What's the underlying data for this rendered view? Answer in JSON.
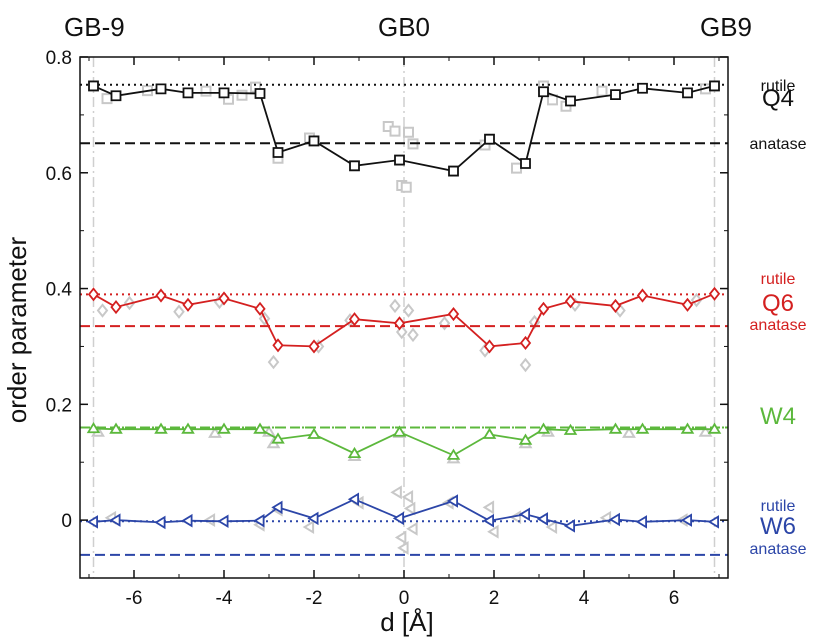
{
  "chart_data": {
    "type": "line",
    "xlabel": "d [Å]",
    "ylabel": "order parameter",
    "xlim": [
      -7.2,
      7.2
    ],
    "ylim": [
      -0.1,
      0.8
    ],
    "x_ticks": [
      -6,
      -4,
      -2,
      0,
      2,
      4,
      6
    ],
    "y_ticks": [
      0,
      0.2,
      0.4,
      0.6,
      0.8
    ],
    "y_tick_labels": [
      "0",
      "0.2",
      "0.4",
      "0.6",
      "0.8"
    ],
    "x_tick_labels": [
      "-6",
      "-4",
      "-2",
      "0",
      "2",
      "4",
      "6"
    ],
    "top_labels": [
      {
        "text": "GB-9",
        "x": -6.9
      },
      {
        "text": "GB0",
        "x": 0
      },
      {
        "text": "GB9",
        "x": 6.9
      }
    ],
    "vertical_lines_x": [
      -6.9,
      0,
      6.9
    ],
    "series": [
      {
        "name": "Q4",
        "color": "#111111",
        "marker": "square",
        "x": [
          -6.9,
          -6.4,
          -5.4,
          -4.8,
          -4.0,
          -3.2,
          -2.8,
          -2.0,
          -1.1,
          -0.1,
          1.1,
          1.9,
          2.7,
          3.1,
          3.7,
          4.7,
          5.3,
          6.3,
          6.9
        ],
        "y": [
          0.75,
          0.733,
          0.745,
          0.738,
          0.738,
          0.737,
          0.635,
          0.655,
          0.612,
          0.622,
          0.603,
          0.658,
          0.616,
          0.74,
          0.724,
          0.735,
          0.746,
          0.738,
          0.75
        ],
        "rutile": 0.752,
        "anatase": 0.651,
        "rutile_label": "rutile",
        "anatase_label": "anatase"
      },
      {
        "name": "Q6",
        "color": "#d42020",
        "marker": "diamond",
        "x": [
          -6.9,
          -6.4,
          -5.4,
          -4.8,
          -4.0,
          -3.2,
          -2.8,
          -2.0,
          -1.1,
          -0.1,
          1.1,
          1.9,
          2.7,
          3.1,
          3.7,
          4.7,
          5.3,
          6.3,
          6.9
        ],
        "y": [
          0.39,
          0.368,
          0.388,
          0.372,
          0.383,
          0.365,
          0.302,
          0.3,
          0.347,
          0.34,
          0.356,
          0.3,
          0.306,
          0.365,
          0.378,
          0.37,
          0.388,
          0.372,
          0.391
        ],
        "rutile": 0.39,
        "anatase": 0.335,
        "rutile_label": "rutile",
        "anatase_label": "anatase"
      },
      {
        "name": "W4",
        "color": "#5cb83c",
        "marker": "triangle-up",
        "x": [
          -6.9,
          -6.4,
          -5.4,
          -4.8,
          -4.0,
          -3.2,
          -2.8,
          -2.0,
          -1.1,
          -0.1,
          1.1,
          1.9,
          2.7,
          3.1,
          3.7,
          4.7,
          5.3,
          6.3,
          6.9
        ],
        "y": [
          0.158,
          0.157,
          0.157,
          0.157,
          0.157,
          0.157,
          0.14,
          0.148,
          0.115,
          0.152,
          0.112,
          0.148,
          0.138,
          0.157,
          0.155,
          0.157,
          0.157,
          0.157,
          0.157
        ],
        "rutile": 0.16,
        "anatase": 0.16
      },
      {
        "name": "W6",
        "color": "#2c46a8",
        "marker": "triangle-left",
        "x": [
          -6.9,
          -6.4,
          -5.4,
          -4.8,
          -4.0,
          -3.2,
          -2.8,
          -2.0,
          -1.1,
          -0.1,
          1.1,
          1.9,
          2.7,
          3.1,
          3.7,
          4.7,
          5.3,
          6.3,
          6.9
        ],
        "y": [
          -0.003,
          0.0,
          -0.004,
          -0.001,
          -0.002,
          -0.001,
          0.022,
          0.003,
          0.036,
          0.003,
          0.033,
          -0.001,
          0.01,
          0.002,
          -0.01,
          0.001,
          -0.003,
          0.0,
          -0.003
        ],
        "rutile": -0.002,
        "anatase": -0.06,
        "rutile_label": "rutile",
        "anatase_label": "anatase"
      }
    ],
    "background_points": {
      "color": "#c8c8c8",
      "Q4": [
        [
          -6.6,
          0.728
        ],
        [
          -5.7,
          0.742
        ],
        [
          -4.4,
          0.741
        ],
        [
          -3.6,
          0.734
        ],
        [
          -3.9,
          0.727
        ],
        [
          -3.3,
          0.748
        ],
        [
          -2.8,
          0.625
        ],
        [
          -2.1,
          0.66
        ],
        [
          -0.35,
          0.68
        ],
        [
          -0.2,
          0.672
        ],
        [
          -0.05,
          0.578
        ],
        [
          0.05,
          0.575
        ],
        [
          0.1,
          0.67
        ],
        [
          0.2,
          0.65
        ],
        [
          1.8,
          0.648
        ],
        [
          2.5,
          0.608
        ],
        [
          3.1,
          0.75
        ],
        [
          3.3,
          0.726
        ],
        [
          3.6,
          0.715
        ],
        [
          4.4,
          0.741
        ],
        [
          6.7,
          0.745
        ]
      ],
      "Q6": [
        [
          -6.7,
          0.362
        ],
        [
          -6.1,
          0.375
        ],
        [
          -5.0,
          0.36
        ],
        [
          -4.1,
          0.377
        ],
        [
          -3.1,
          0.348
        ],
        [
          -2.9,
          0.273
        ],
        [
          -1.9,
          0.3
        ],
        [
          -1.2,
          0.345
        ],
        [
          -0.2,
          0.37
        ],
        [
          -0.05,
          0.325
        ],
        [
          0.1,
          0.362
        ],
        [
          0.2,
          0.32
        ],
        [
          0.9,
          0.34
        ],
        [
          1.8,
          0.293
        ],
        [
          2.7,
          0.268
        ],
        [
          2.9,
          0.342
        ],
        [
          3.8,
          0.372
        ],
        [
          4.8,
          0.362
        ],
        [
          6.5,
          0.38
        ]
      ],
      "W4": [
        [
          -6.8,
          0.152
        ],
        [
          -4.2,
          0.15
        ],
        [
          -3.0,
          0.152
        ],
        [
          -2.9,
          0.132
        ],
        [
          -1.1,
          0.11
        ],
        [
          -0.1,
          0.15
        ],
        [
          1.1,
          0.106
        ],
        [
          2.7,
          0.132
        ],
        [
          3.2,
          0.152
        ],
        [
          5.0,
          0.15
        ],
        [
          6.7,
          0.152
        ]
      ],
      "W6": [
        [
          -6.5,
          0.004
        ],
        [
          -4.3,
          0.0
        ],
        [
          -3.2,
          -0.008
        ],
        [
          -2.8,
          0.018
        ],
        [
          -2.1,
          -0.012
        ],
        [
          -1.0,
          0.03
        ],
        [
          -0.15,
          0.048
        ],
        [
          -0.05,
          -0.03
        ],
        [
          0.0,
          -0.048
        ],
        [
          0.1,
          0.04
        ],
        [
          0.15,
          0.02
        ],
        [
          0.2,
          -0.015
        ],
        [
          1.0,
          0.03
        ],
        [
          1.9,
          0.022
        ],
        [
          2.0,
          -0.02
        ],
        [
          2.5,
          0.005
        ],
        [
          3.3,
          -0.012
        ],
        [
          4.5,
          0.004
        ],
        [
          6.2,
          0.0
        ]
      ]
    }
  }
}
